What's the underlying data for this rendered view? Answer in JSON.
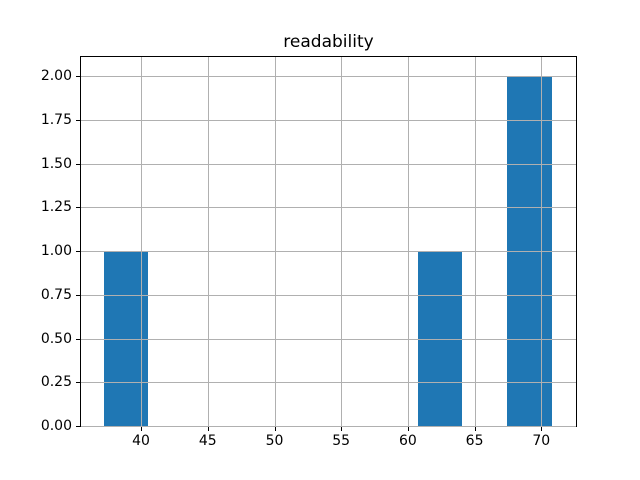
{
  "chart_data": {
    "type": "bar",
    "subtype": "histogram",
    "title": "readability",
    "xlabel": "",
    "ylabel": "",
    "bin_edges": [
      37.2,
      40.56,
      43.92,
      47.28,
      50.64,
      54.0,
      57.36,
      60.72,
      64.08,
      67.44,
      70.8
    ],
    "counts": [
      1,
      0,
      0,
      0,
      0,
      0,
      0,
      1,
      0,
      2
    ],
    "xticks": {
      "values": [
        40,
        45,
        50,
        55,
        60,
        65,
        70
      ],
      "labels": [
        "40",
        "45",
        "50",
        "55",
        "60",
        "65",
        "70"
      ]
    },
    "yticks": {
      "values": [
        0,
        0.25,
        0.5,
        0.75,
        1.0,
        1.25,
        1.5,
        1.75,
        2.0
      ],
      "labels": [
        "0.00",
        "0.25",
        "0.50",
        "0.75",
        "1.00",
        "1.25",
        "1.50",
        "1.75",
        "2.00"
      ]
    },
    "xlim": [
      35.5,
      72.6
    ],
    "ylim": [
      0,
      2.11
    ],
    "grid": true,
    "grid_above_bars": true,
    "legend": false,
    "colors": {
      "bar": "#1f77b4",
      "grid": "#b0b0b0",
      "spine": "#000000",
      "text": "#000000",
      "background": "#ffffff"
    }
  }
}
